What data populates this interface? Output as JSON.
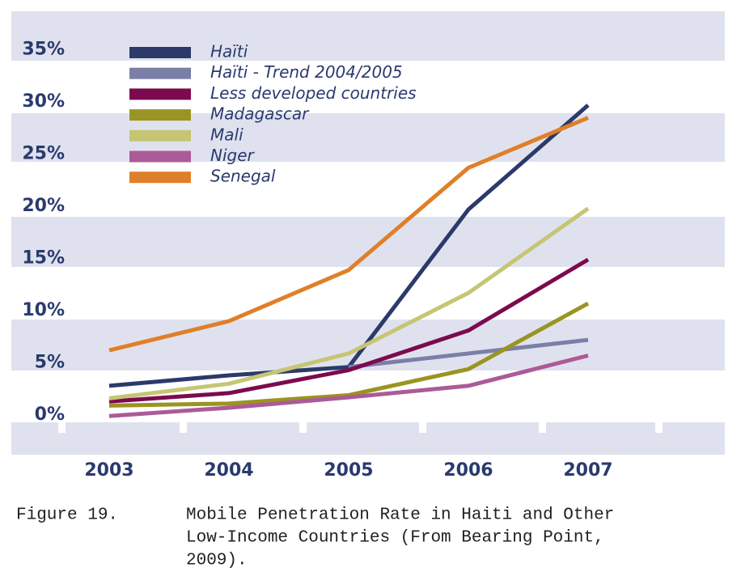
{
  "chart_data": {
    "type": "line",
    "categories": [
      "2003",
      "2004",
      "2005",
      "2006",
      "2007"
    ],
    "series": [
      {
        "name": "Haïti",
        "color": "#2b3a6b",
        "values": [
          3.1,
          4.1,
          4.9,
          20,
          30
        ]
      },
      {
        "name": "Haïti - Trend 2004/2005",
        "color": "#7b7fa8",
        "values": [
          null,
          null,
          4.9,
          6.2,
          7.5
        ]
      },
      {
        "name": "Less developed countries",
        "color": "#7c0a4e",
        "values": [
          1.6,
          2.4,
          4.6,
          8.4,
          15.2
        ]
      },
      {
        "name": "Madagascar",
        "color": "#9a9422",
        "values": [
          1.2,
          1.4,
          2.2,
          4.7,
          11
        ]
      },
      {
        "name": "Mali",
        "color": "#c6c574",
        "values": [
          1.9,
          3.3,
          6.2,
          12,
          20.1
        ]
      },
      {
        "name": "Niger",
        "color": "#ac5a98",
        "values": [
          0.2,
          1.0,
          2.0,
          3.1,
          6
        ]
      },
      {
        "name": "Senegal",
        "color": "#e07f2a",
        "values": [
          6.5,
          9.3,
          14.2,
          24,
          28.8
        ]
      }
    ],
    "ylim": [
      -3.5,
      39
    ],
    "yticks": [
      {
        "value": 0,
        "label": "0%"
      },
      {
        "value": 5,
        "label": "5%"
      },
      {
        "value": 10,
        "label": "10%"
      },
      {
        "value": 15,
        "label": "15%"
      },
      {
        "value": 20,
        "label": "20%"
      },
      {
        "value": 25,
        "label": "25%"
      },
      {
        "value": 30,
        "label": "30%"
      },
      {
        "value": 35,
        "label": "35%"
      }
    ],
    "grid": false,
    "legend": "top-left",
    "caption": {
      "label": "Figure 19.",
      "lines": [
        "Mobile Penetration Rate in Haiti and Other",
        "Low-Income Countries (From Bearing Point,",
        "2009)."
      ]
    }
  }
}
